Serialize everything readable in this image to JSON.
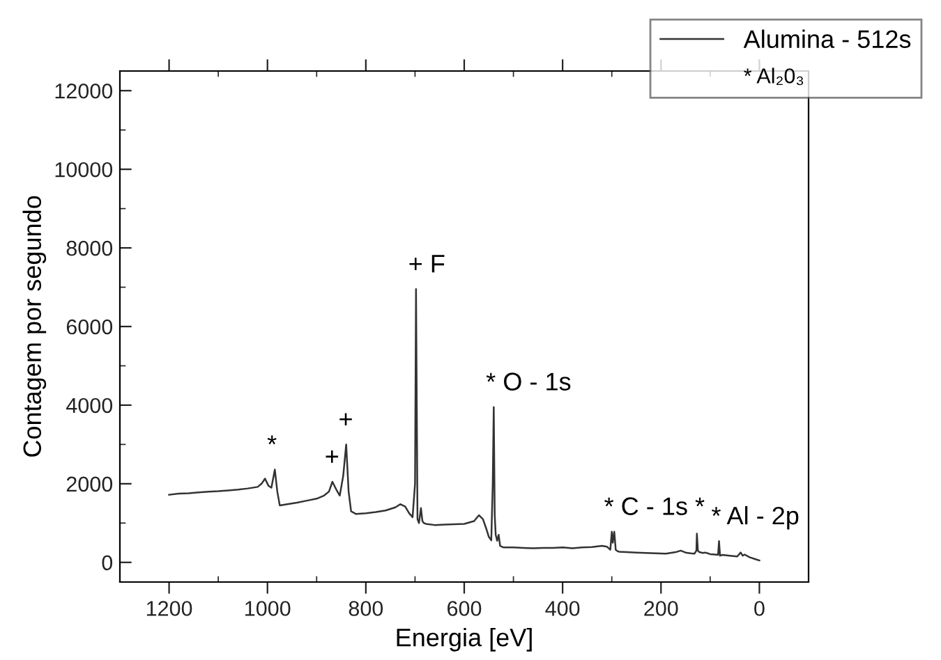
{
  "chart_data": {
    "type": "line",
    "xlabel": "Energia [eV]",
    "ylabel": "Contagem por segundo",
    "xlim": [
      1300,
      -100
    ],
    "xticks": [
      1200,
      1000,
      800,
      600,
      400,
      200,
      0
    ],
    "ylim": [
      -500,
      12500
    ],
    "yticks": [
      0,
      2000,
      4000,
      6000,
      8000,
      10000,
      12000
    ],
    "grid": false,
    "legend": "top right",
    "marker": "none",
    "line_style": "solid",
    "series": [
      {
        "name": "Alumina - 512s",
        "color": "#333333",
        "x": [
          1200,
          1180,
          1160,
          1140,
          1120,
          1100,
          1080,
          1060,
          1040,
          1020,
          1012,
          1005,
          998,
          992,
          985,
          980,
          975,
          960,
          940,
          920,
          900,
          885,
          875,
          868,
          860,
          853,
          846,
          840,
          835,
          830,
          820,
          800,
          780,
          760,
          740,
          730,
          720,
          712,
          705,
          700,
          698,
          697,
          695,
          692,
          688,
          685,
          682,
          678,
          660,
          640,
          620,
          600,
          580,
          570,
          562,
          555,
          550,
          545,
          542,
          540,
          538,
          536,
          533,
          530,
          527,
          520,
          500,
          480,
          460,
          440,
          420,
          400,
          380,
          360,
          340,
          320,
          310,
          303,
          300,
          298,
          295,
          292,
          289,
          285,
          270,
          250,
          230,
          210,
          190,
          170,
          160,
          150,
          140,
          132,
          128,
          127,
          125,
          122,
          115,
          110,
          100,
          90,
          84,
          82,
          80,
          75,
          60,
          45,
          38,
          34,
          30,
          20,
          10,
          0
        ],
        "values": [
          1720,
          1750,
          1760,
          1780,
          1800,
          1810,
          1830,
          1850,
          1880,
          1920,
          2000,
          2130,
          1950,
          1900,
          2360,
          1800,
          1450,
          1480,
          1520,
          1570,
          1620,
          1700,
          1800,
          2050,
          1850,
          1700,
          2200,
          3000,
          1800,
          1300,
          1230,
          1250,
          1280,
          1320,
          1400,
          1480,
          1420,
          1250,
          1150,
          2000,
          6950,
          5000,
          1100,
          1000,
          1380,
          1050,
          1000,
          980,
          950,
          960,
          970,
          980,
          1050,
          1200,
          1100,
          850,
          650,
          560,
          2000,
          3950,
          1200,
          700,
          550,
          700,
          420,
          380,
          380,
          370,
          360,
          370,
          370,
          380,
          360,
          380,
          390,
          420,
          400,
          320,
          780,
          500,
          780,
          320,
          290,
          270,
          260,
          250,
          240,
          230,
          220,
          260,
          300,
          250,
          230,
          220,
          300,
          730,
          300,
          260,
          240,
          250,
          210,
          200,
          190,
          540,
          170,
          190,
          170,
          150,
          250,
          170,
          200,
          130,
          90,
          50
        ]
      }
    ],
    "annotations": [
      {
        "text": "*",
        "x": 985,
        "y": 2360
      },
      {
        "text": "+",
        "x": 868,
        "y": 2050
      },
      {
        "text": "+",
        "x": 840,
        "y": 3000
      },
      {
        "text": "+ F",
        "x": 698,
        "y": 6950
      },
      {
        "text": "* O - 1s",
        "x": 540,
        "y": 3950
      },
      {
        "text": "* C - 1s *",
        "x": 300,
        "y": 780
      },
      {
        "text": "* Al - 2p",
        "x": 82,
        "y": 540
      },
      "* Al₂0₃"
    ]
  }
}
